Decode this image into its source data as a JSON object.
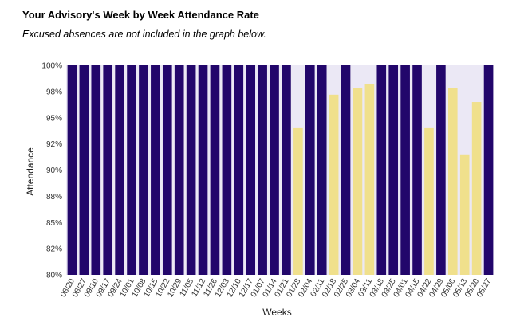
{
  "header": {
    "title": "Your Advisory's Week by Week Attendance Rate",
    "subtitle": "Excused absences are not included in the graph below."
  },
  "colors": {
    "full": "#22066b",
    "partial": "#f0e08c",
    "plot_background": "#ebe8f5",
    "tick_text": "#333333"
  },
  "chart_data": {
    "type": "bar",
    "xlabel": "Weeks",
    "ylabel": "Attendance",
    "ylim": [
      80,
      100
    ],
    "ytick_values": [
      80,
      82.5,
      85,
      87.5,
      90,
      92.5,
      95,
      97.5,
      100
    ],
    "ytick_labels": [
      "80%",
      "82%",
      "85%",
      "88%",
      "90%",
      "92%",
      "95%",
      "98%",
      "100%"
    ],
    "grid": false,
    "legend": "none",
    "categories": [
      "08/20",
      "08/27",
      "09/10",
      "09/17",
      "09/24",
      "10/01",
      "10/08",
      "10/15",
      "10/22",
      "10/29",
      "11/05",
      "11/12",
      "11/26",
      "12/03",
      "12/10",
      "12/17",
      "01/07",
      "01/14",
      "01/21",
      "01/28",
      "02/04",
      "02/11",
      "02/18",
      "02/25",
      "03/04",
      "03/11",
      "03/18",
      "03/25",
      "04/01",
      "04/15",
      "04/22",
      "04/29",
      "05/06",
      "05/13",
      "05/20",
      "05/27"
    ],
    "values": [
      100,
      100,
      100,
      100,
      100,
      100,
      100,
      100,
      100,
      100,
      100,
      100,
      100,
      100,
      100,
      100,
      100,
      100,
      100,
      94,
      100,
      100,
      97.2,
      100,
      97.8,
      98.2,
      100,
      100,
      100,
      100,
      94,
      100,
      97.8,
      91.5,
      96.5,
      100
    ],
    "series_color_rule": "bars at 100% use colors.full; lower bars use colors.partial"
  }
}
